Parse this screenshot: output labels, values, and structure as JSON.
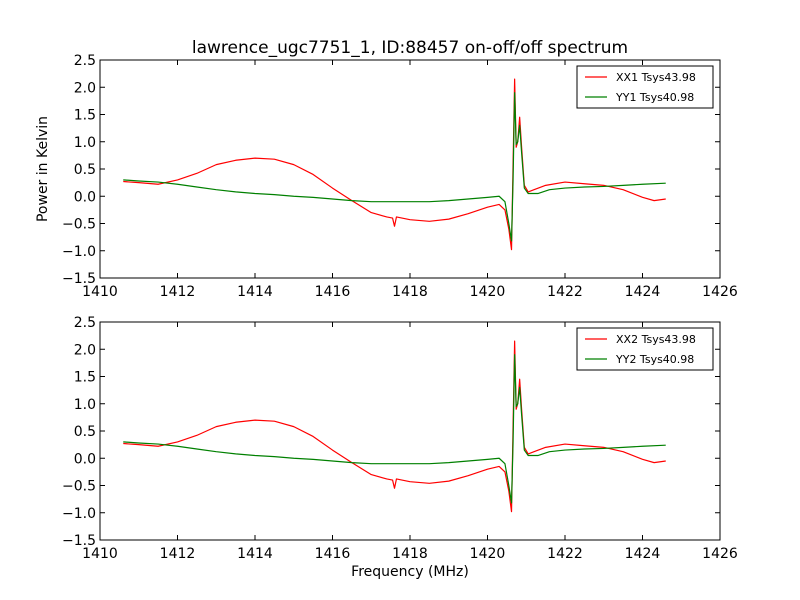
{
  "title": "lawrence_ugc7751_1, ID:88457 on-off/off spectrum",
  "chart_data": [
    {
      "type": "line",
      "title": "lawrence_ugc7751_1, ID:88457 on-off/off spectrum",
      "xlabel": "",
      "ylabel": "Power in Kelvin",
      "xlim": [
        1410,
        1426
      ],
      "ylim": [
        -1.5,
        2.5
      ],
      "xticks": [
        1410,
        1412,
        1414,
        1416,
        1418,
        1420,
        1422,
        1424,
        1426
      ],
      "yticks": [
        -1.5,
        -1.0,
        -0.5,
        0.0,
        0.5,
        1.0,
        1.5,
        2.0,
        2.5
      ],
      "xtick_labels": [
        "1410",
        "1412",
        "1414",
        "1416",
        "1418",
        "1420",
        "1422",
        "1424",
        "1426"
      ],
      "ytick_labels": [
        "−1.5",
        "−1.0",
        "−0.5",
        "0.0",
        "0.5",
        "1.0",
        "1.5",
        "2.0",
        "2.5"
      ],
      "grid": false,
      "legend_position": "top-right",
      "series": [
        {
          "name": "XX1 Tsys43.98",
          "color": "#ff0000",
          "x": [
            1410.6,
            1411.0,
            1411.5,
            1412.0,
            1412.5,
            1413.0,
            1413.5,
            1414.0,
            1414.5,
            1415.0,
            1415.5,
            1416.0,
            1416.5,
            1417.0,
            1417.4,
            1417.55,
            1417.6,
            1417.65,
            1418.0,
            1418.5,
            1419.0,
            1419.5,
            1420.0,
            1420.3,
            1420.45,
            1420.55,
            1420.62,
            1420.66,
            1420.7,
            1420.74,
            1420.78,
            1420.83,
            1420.88,
            1420.95,
            1421.05,
            1421.2,
            1421.5,
            1422.0,
            1422.5,
            1423.0,
            1423.5,
            1424.0,
            1424.3,
            1424.6
          ],
          "y": [
            0.27,
            0.25,
            0.22,
            0.3,
            0.42,
            0.58,
            0.66,
            0.7,
            0.68,
            0.58,
            0.4,
            0.15,
            -0.08,
            -0.3,
            -0.38,
            -0.4,
            -0.55,
            -0.38,
            -0.43,
            -0.46,
            -0.42,
            -0.32,
            -0.2,
            -0.15,
            -0.25,
            -0.6,
            -0.98,
            0.6,
            2.15,
            0.9,
            1.0,
            1.45,
            0.9,
            0.2,
            0.08,
            0.12,
            0.2,
            0.26,
            0.23,
            0.2,
            0.12,
            -0.02,
            -0.08,
            -0.05
          ]
        },
        {
          "name": "YY1 Tsys40.98",
          "color": "#008000",
          "x": [
            1410.6,
            1411.0,
            1411.5,
            1412.0,
            1412.5,
            1413.0,
            1413.5,
            1414.0,
            1414.5,
            1415.0,
            1415.5,
            1416.0,
            1416.5,
            1417.0,
            1417.5,
            1418.0,
            1418.5,
            1419.0,
            1419.5,
            1420.0,
            1420.3,
            1420.45,
            1420.55,
            1420.62,
            1420.66,
            1420.7,
            1420.74,
            1420.78,
            1420.83,
            1420.88,
            1420.95,
            1421.05,
            1421.3,
            1421.6,
            1422.0,
            1422.5,
            1423.0,
            1423.5,
            1424.0,
            1424.6
          ],
          "y": [
            0.3,
            0.28,
            0.26,
            0.22,
            0.17,
            0.12,
            0.08,
            0.05,
            0.03,
            0.0,
            -0.02,
            -0.05,
            -0.08,
            -0.1,
            -0.1,
            -0.1,
            -0.1,
            -0.08,
            -0.05,
            -0.02,
            0.0,
            -0.1,
            -0.5,
            -0.82,
            0.3,
            1.9,
            0.95,
            1.0,
            1.3,
            0.8,
            0.15,
            0.05,
            0.05,
            0.12,
            0.15,
            0.17,
            0.18,
            0.2,
            0.22,
            0.24
          ]
        }
      ]
    },
    {
      "type": "line",
      "title": "",
      "xlabel": "Frequency (MHz)",
      "ylabel": "",
      "xlim": [
        1410,
        1426
      ],
      "ylim": [
        -1.5,
        2.5
      ],
      "xticks": [
        1410,
        1412,
        1414,
        1416,
        1418,
        1420,
        1422,
        1424,
        1426
      ],
      "yticks": [
        -1.5,
        -1.0,
        -0.5,
        0.0,
        0.5,
        1.0,
        1.5,
        2.0,
        2.5
      ],
      "xtick_labels": [
        "1410",
        "1412",
        "1414",
        "1416",
        "1418",
        "1420",
        "1422",
        "1424",
        "1426"
      ],
      "ytick_labels": [
        "−1.5",
        "−1.0",
        "−0.5",
        "0.0",
        "0.5",
        "1.0",
        "1.5",
        "2.0",
        "2.5"
      ],
      "grid": false,
      "legend_position": "top-right",
      "series": [
        {
          "name": "XX2 Tsys43.98",
          "color": "#ff0000",
          "x": [
            1410.6,
            1411.0,
            1411.5,
            1412.0,
            1412.5,
            1413.0,
            1413.5,
            1414.0,
            1414.5,
            1415.0,
            1415.5,
            1416.0,
            1416.5,
            1417.0,
            1417.4,
            1417.55,
            1417.6,
            1417.65,
            1418.0,
            1418.5,
            1419.0,
            1419.5,
            1420.0,
            1420.3,
            1420.45,
            1420.55,
            1420.62,
            1420.66,
            1420.7,
            1420.74,
            1420.78,
            1420.83,
            1420.88,
            1420.95,
            1421.05,
            1421.2,
            1421.5,
            1422.0,
            1422.5,
            1423.0,
            1423.5,
            1424.0,
            1424.3,
            1424.6
          ],
          "y": [
            0.27,
            0.25,
            0.22,
            0.3,
            0.42,
            0.58,
            0.66,
            0.7,
            0.68,
            0.58,
            0.4,
            0.15,
            -0.08,
            -0.3,
            -0.38,
            -0.4,
            -0.55,
            -0.38,
            -0.43,
            -0.46,
            -0.42,
            -0.32,
            -0.2,
            -0.15,
            -0.25,
            -0.6,
            -0.98,
            0.6,
            2.15,
            0.9,
            1.0,
            1.45,
            0.9,
            0.2,
            0.08,
            0.12,
            0.2,
            0.26,
            0.23,
            0.2,
            0.12,
            -0.02,
            -0.08,
            -0.05
          ]
        },
        {
          "name": "YY2 Tsys40.98",
          "color": "#008000",
          "x": [
            1410.6,
            1411.0,
            1411.5,
            1412.0,
            1412.5,
            1413.0,
            1413.5,
            1414.0,
            1414.5,
            1415.0,
            1415.5,
            1416.0,
            1416.5,
            1417.0,
            1417.5,
            1418.0,
            1418.5,
            1419.0,
            1419.5,
            1420.0,
            1420.3,
            1420.45,
            1420.55,
            1420.62,
            1420.66,
            1420.7,
            1420.74,
            1420.78,
            1420.83,
            1420.88,
            1420.95,
            1421.05,
            1421.3,
            1421.6,
            1422.0,
            1422.5,
            1423.0,
            1423.5,
            1424.0,
            1424.6
          ],
          "y": [
            0.3,
            0.28,
            0.26,
            0.22,
            0.17,
            0.12,
            0.08,
            0.05,
            0.03,
            0.0,
            -0.02,
            -0.05,
            -0.08,
            -0.1,
            -0.1,
            -0.1,
            -0.1,
            -0.08,
            -0.05,
            -0.02,
            0.0,
            -0.1,
            -0.5,
            -0.82,
            0.3,
            1.9,
            0.95,
            1.0,
            1.3,
            0.8,
            0.15,
            0.05,
            0.05,
            0.12,
            0.15,
            0.17,
            0.18,
            0.2,
            0.22,
            0.24
          ]
        }
      ]
    }
  ]
}
